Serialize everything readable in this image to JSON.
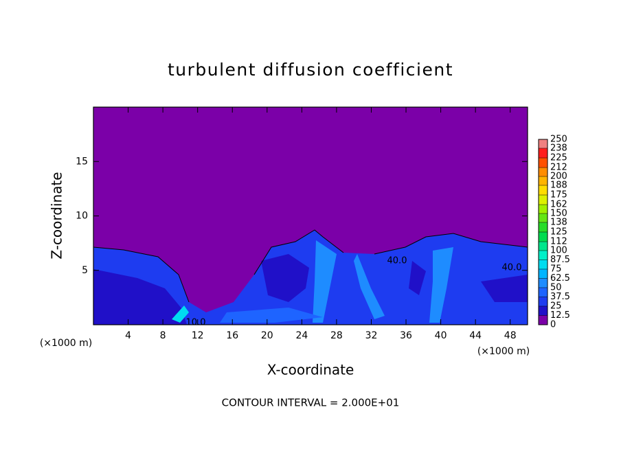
{
  "chart_data": {
    "type": "contour",
    "title": "turbulent diffusion coefficient",
    "xlabel": "X-coordinate",
    "ylabel": "Z-coordinate",
    "x_unit_left": "(×1000 m)",
    "x_unit_right": "(×1000 m)",
    "footer": "CONTOUR INTERVAL = 2.000E+01",
    "xlim": [
      0,
      50
    ],
    "ylim": [
      0,
      20
    ],
    "xticks": [
      4,
      8,
      12,
      16,
      20,
      24,
      28,
      32,
      36,
      40,
      44,
      48
    ],
    "yticks": [
      5,
      10,
      15
    ],
    "contour_labels": [
      "10.0",
      "40.0",
      "40.0"
    ],
    "colorbar": {
      "lim": [
        0,
        250
      ],
      "ticks": [
        0,
        12.5,
        25,
        37.5,
        50,
        62.5,
        75,
        87.5,
        100,
        112,
        125,
        138,
        150,
        162,
        175,
        188,
        200,
        212,
        225,
        238,
        250
      ],
      "colors": [
        "#7b00a8",
        "#2010c8",
        "#1e3cf0",
        "#1e64ff",
        "#1e8cff",
        "#00b4ff",
        "#00dcf0",
        "#00f0c8",
        "#00e68c",
        "#00dc50",
        "#28dc28",
        "#64e614",
        "#a0f000",
        "#dcf000",
        "#ffdc00",
        "#ffb400",
        "#ff8c00",
        "#ff5000",
        "#ff1e1e",
        "#f08080"
      ]
    }
  }
}
